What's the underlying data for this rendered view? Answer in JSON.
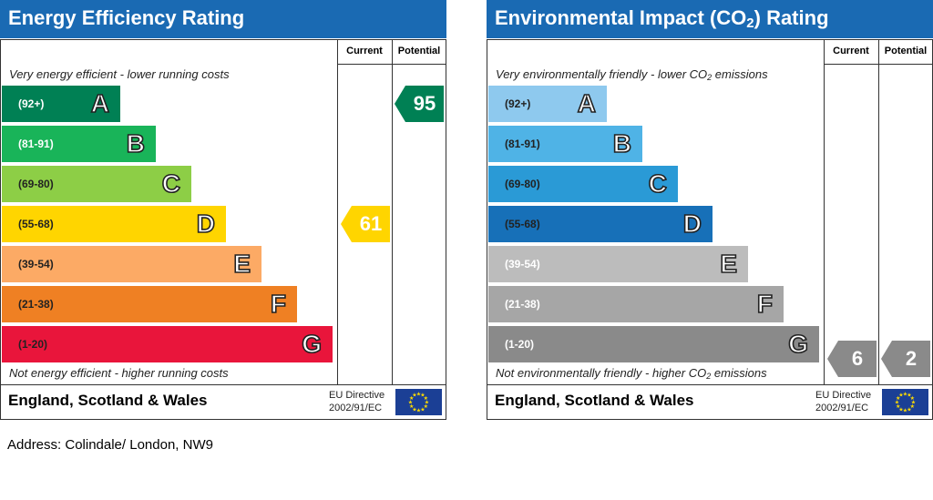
{
  "energy": {
    "title": "Energy Efficiency Rating",
    "col_current": "Current",
    "col_potential": "Potential",
    "top_note": "Very energy efficient - lower running costs",
    "bottom_note": "Not energy efficient - higher running costs",
    "bands": [
      {
        "range": "(92+)",
        "letter": "A",
        "color": "#008054",
        "text_color": "#ffffff"
      },
      {
        "range": "(81-91)",
        "letter": "B",
        "color": "#19b459",
        "text_color": "#ffffff"
      },
      {
        "range": "(69-80)",
        "letter": "C",
        "color": "#8dce46",
        "text_color": "#222222"
      },
      {
        "range": "(55-68)",
        "letter": "D",
        "color": "#ffd500",
        "text_color": "#222222"
      },
      {
        "range": "(39-54)",
        "letter": "E",
        "color": "#fcaa65",
        "text_color": "#222222"
      },
      {
        "range": "(21-38)",
        "letter": "F",
        "color": "#ef8023",
        "text_color": "#222222"
      },
      {
        "range": "(1-20)",
        "letter": "G",
        "color": "#e9153b",
        "text_color": "#222222"
      }
    ],
    "current": {
      "value": "61",
      "band": "D",
      "color": "#ffd500"
    },
    "potential": {
      "value": "95",
      "band": "A",
      "color": "#008054"
    },
    "region": "England, Scotland & Wales",
    "directive_line1": "EU Directive",
    "directive_line2": "2002/91/EC"
  },
  "environment": {
    "title_main": "Environmental Impact (CO",
    "title_sub": "2",
    "title_end": ") Rating",
    "col_current": "Current",
    "col_potential": "Potential",
    "top_note_main": "Very environmentally friendly - lower CO",
    "top_note_sub": "2",
    "top_note_end": " emissions",
    "bottom_note_main": "Not environmentally friendly - higher CO",
    "bottom_note_sub": "2",
    "bottom_note_end": " emissions",
    "bands": [
      {
        "range": "(92+)",
        "letter": "A",
        "color": "#8ec9ee",
        "text_color": "#222222"
      },
      {
        "range": "(81-91)",
        "letter": "B",
        "color": "#4fb3e6",
        "text_color": "#222222"
      },
      {
        "range": "(69-80)",
        "letter": "C",
        "color": "#2a9ad6",
        "text_color": "#222222"
      },
      {
        "range": "(55-68)",
        "letter": "D",
        "color": "#1770b8",
        "text_color": "#222222"
      },
      {
        "range": "(39-54)",
        "letter": "E",
        "color": "#bcbcbc",
        "text_color": "#ffffff"
      },
      {
        "range": "(21-38)",
        "letter": "F",
        "color": "#a6a6a6",
        "text_color": "#ffffff"
      },
      {
        "range": "(1-20)",
        "letter": "G",
        "color": "#8a8a8a",
        "text_color": "#ffffff"
      }
    ],
    "current": {
      "value": "6",
      "band": "G",
      "color": "#8a8a8a"
    },
    "potential": {
      "value": "2",
      "band": "G",
      "color": "#8a8a8a"
    },
    "region": "England, Scotland & Wales",
    "directive_line1": "EU Directive",
    "directive_line2": "2002/91/EC"
  },
  "address": "Address: Colindale/ London, NW9",
  "chart_data": [
    {
      "type": "bar",
      "title": "Energy Efficiency Rating",
      "categories": [
        "A",
        "B",
        "C",
        "D",
        "E",
        "F",
        "G"
      ],
      "ranges": [
        "(92+)",
        "(81-91)",
        "(69-80)",
        "(55-68)",
        "(39-54)",
        "(21-38)",
        "(1-20)"
      ],
      "current": 61,
      "potential": 95
    },
    {
      "type": "bar",
      "title": "Environmental Impact (CO2) Rating",
      "categories": [
        "A",
        "B",
        "C",
        "D",
        "E",
        "F",
        "G"
      ],
      "ranges": [
        "(92+)",
        "(81-91)",
        "(69-80)",
        "(55-68)",
        "(39-54)",
        "(21-38)",
        "(1-20)"
      ],
      "current": 6,
      "potential": 2
    }
  ]
}
